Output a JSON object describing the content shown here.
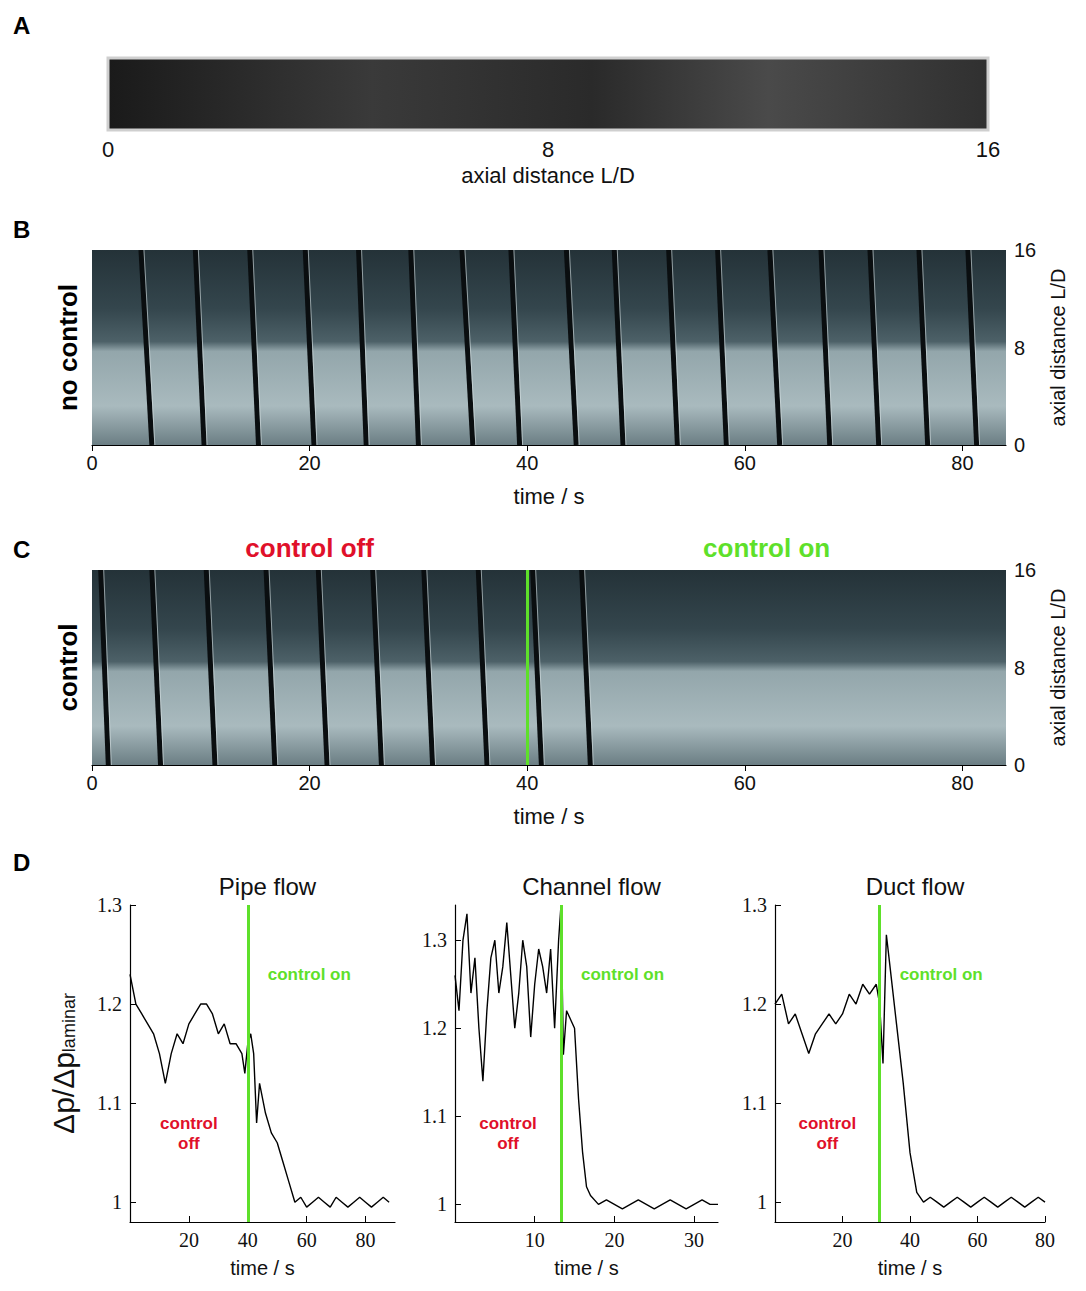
{
  "chart_data": [
    {
      "panel_label": "A",
      "type": "image",
      "xlabel": "axial distance L/D",
      "xlim": [
        0,
        16
      ],
      "xticks": [
        0,
        8,
        16
      ],
      "tick_labels": "x"
    },
    {
      "panel_label": "B",
      "type": "kymograph",
      "side_label": "no control",
      "xlabel": "time / s",
      "ylabel": "axial distance L/D",
      "xlim": [
        0,
        84
      ],
      "xticks": [
        0,
        20,
        40,
        60,
        80
      ],
      "ylim": [
        0,
        16
      ],
      "yticks": [
        0,
        8,
        16
      ],
      "streaks": [
        [
          4.5,
          5.5
        ],
        [
          9.5,
          10.3
        ],
        [
          14.5,
          15.3
        ],
        [
          19.6,
          20.4
        ],
        [
          24.5,
          25.2
        ],
        [
          29.3,
          30
        ],
        [
          34,
          35
        ],
        [
          38.5,
          39.3
        ],
        [
          43.6,
          44.5
        ],
        [
          48,
          48.8
        ],
        [
          53,
          53.8
        ],
        [
          57.5,
          58.3
        ],
        [
          62.3,
          63.2
        ],
        [
          67,
          67.8
        ],
        [
          71.5,
          72.3
        ],
        [
          76,
          76.8
        ],
        [
          80.5,
          81.3
        ]
      ]
    },
    {
      "panel_label": "C",
      "type": "kymograph",
      "side_label": "control",
      "xlabel": "time / s",
      "ylabel": "axial distance L/D",
      "xlim": [
        0,
        84
      ],
      "xticks": [
        0,
        20,
        40,
        60,
        80
      ],
      "ylim": [
        0,
        16
      ],
      "yticks": [
        0,
        8,
        16
      ],
      "control_time": 40,
      "control_off": {
        "text": "control off",
        "color": "#e0102a"
      },
      "control_on": {
        "text": "control on",
        "color": "#5ee02a"
      },
      "streaks": [
        [
          0.8,
          1.5
        ],
        [
          5.5,
          6.3
        ],
        [
          10.5,
          11.3
        ],
        [
          16,
          16.8
        ],
        [
          20.8,
          21.6
        ],
        [
          25.8,
          26.6
        ],
        [
          30.5,
          31.3
        ],
        [
          35.5,
          36.3
        ],
        [
          40.5,
          41.3
        ],
        [
          45,
          45.8
        ]
      ]
    },
    {
      "panel_label": "D",
      "type": "line",
      "title": "Pipe flow",
      "ylabel": "Δp/Δp",
      "ylabel_subscript": "laminar",
      "xlabel": "time / s",
      "color": "#000000",
      "grid": false,
      "xlim": [
        0,
        90
      ],
      "xticks": [
        20,
        40,
        60,
        80
      ],
      "ylim": [
        0.98,
        1.3
      ],
      "yticks": [
        1,
        1.1,
        1.2,
        1.3
      ],
      "control_time": 40,
      "control_off": {
        "text": "control off",
        "color": "#e0102a"
      },
      "control_on": {
        "text": "control on",
        "color": "#5ee02a"
      },
      "x": [
        0,
        2,
        4,
        6,
        8,
        10,
        12,
        14,
        16,
        18,
        20,
        22,
        24,
        26,
        28,
        30,
        32,
        34,
        36,
        38,
        39,
        40,
        41,
        42,
        43,
        44,
        46,
        48,
        50,
        52,
        54,
        56,
        58,
        60,
        62,
        64,
        66,
        68,
        70,
        72,
        74,
        76,
        78,
        80,
        82,
        84,
        86,
        88
      ],
      "values": [
        1.23,
        1.2,
        1.19,
        1.18,
        1.17,
        1.15,
        1.12,
        1.15,
        1.17,
        1.16,
        1.18,
        1.19,
        1.2,
        1.2,
        1.19,
        1.17,
        1.18,
        1.16,
        1.16,
        1.15,
        1.13,
        1.16,
        1.17,
        1.15,
        1.08,
        1.12,
        1.09,
        1.07,
        1.06,
        1.04,
        1.02,
        1.0,
        1.005,
        0.995,
        1.0,
        1.005,
        1.0,
        0.995,
        1.005,
        1.0,
        0.995,
        1.0,
        1.005,
        1.0,
        0.995,
        1.0,
        1.005,
        1.0
      ]
    },
    {
      "type": "line",
      "title": "Channel flow",
      "xlabel": "time / s",
      "color": "#000000",
      "grid": false,
      "xlim": [
        0,
        33
      ],
      "xticks": [
        10,
        20,
        30
      ],
      "ylim": [
        0.98,
        1.34
      ],
      "yticks": [
        1,
        1.1,
        1.2,
        1.3
      ],
      "control_time": 13.3,
      "control_off": {
        "text": "control off",
        "color": "#e0102a"
      },
      "control_on": {
        "text": "control on",
        "color": "#5ee02a"
      },
      "x": [
        0,
        0.5,
        1,
        1.5,
        2,
        2.5,
        3,
        3.5,
        4,
        4.5,
        5,
        5.5,
        6,
        6.5,
        7,
        7.5,
        8,
        8.5,
        9,
        9.5,
        10,
        10.5,
        11,
        11.5,
        12,
        12.5,
        13,
        13.3,
        13.6,
        14,
        14.5,
        15,
        15.5,
        16,
        16.5,
        17,
        18,
        19,
        20,
        21,
        22,
        23,
        24,
        25,
        26,
        27,
        28,
        29,
        30,
        31,
        32,
        33
      ],
      "values": [
        1.26,
        1.22,
        1.3,
        1.33,
        1.24,
        1.28,
        1.2,
        1.14,
        1.22,
        1.28,
        1.3,
        1.24,
        1.27,
        1.32,
        1.26,
        1.2,
        1.24,
        1.3,
        1.27,
        1.19,
        1.25,
        1.29,
        1.27,
        1.24,
        1.29,
        1.2,
        1.3,
        1.34,
        1.17,
        1.22,
        1.21,
        1.2,
        1.12,
        1.06,
        1.02,
        1.01,
        1.0,
        1.005,
        1.0,
        0.995,
        1.0,
        1.005,
        1.0,
        0.995,
        1.0,
        1.005,
        1.0,
        0.995,
        1.0,
        1.005,
        1.0,
        1.0
      ]
    },
    {
      "type": "line",
      "title": "Duct flow",
      "xlabel": "time / s",
      "color": "#000000",
      "grid": false,
      "xlim": [
        0,
        80
      ],
      "xticks": [
        20,
        40,
        60,
        80
      ],
      "ylim": [
        0.98,
        1.3
      ],
      "yticks": [
        1,
        1.1,
        1.2,
        1.3
      ],
      "control_time": 31,
      "control_off": {
        "text": "control off",
        "color": "#e0102a"
      },
      "control_on": {
        "text": "control on",
        "color": "#5ee02a"
      },
      "x": [
        0,
        2,
        4,
        6,
        8,
        10,
        12,
        14,
        16,
        18,
        20,
        22,
        24,
        26,
        28,
        30,
        31,
        32,
        33,
        34,
        35,
        36,
        37,
        38,
        40,
        42,
        44,
        46,
        48,
        50,
        52,
        54,
        56,
        58,
        60,
        62,
        64,
        66,
        68,
        70,
        72,
        74,
        76,
        78,
        80
      ],
      "values": [
        1.2,
        1.21,
        1.18,
        1.19,
        1.17,
        1.15,
        1.17,
        1.18,
        1.19,
        1.18,
        1.19,
        1.21,
        1.2,
        1.22,
        1.21,
        1.22,
        1.2,
        1.14,
        1.27,
        1.24,
        1.21,
        1.18,
        1.15,
        1.12,
        1.05,
        1.01,
        1.0,
        1.005,
        1.0,
        0.995,
        1.0,
        1.005,
        1.0,
        0.995,
        1.0,
        1.005,
        1.0,
        0.995,
        1.0,
        1.005,
        1.0,
        0.995,
        1.0,
        1.005,
        1.0
      ]
    }
  ]
}
